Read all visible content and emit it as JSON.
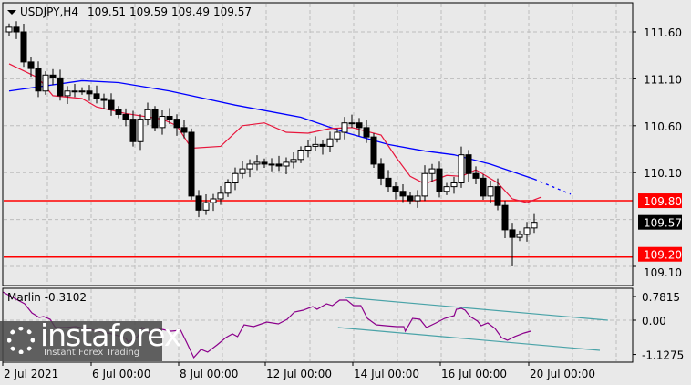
{
  "header": {
    "symbol": "USDJPY,H4",
    "open": "109.51",
    "high": "109.59",
    "low": "109.49",
    "close": "109.57"
  },
  "price_axis": {
    "ticks": [
      "111.60",
      "111.10",
      "110.60",
      "110.10",
      "109.10"
    ],
    "current": "109.57",
    "level_high": "109.80",
    "level_low": "109.20"
  },
  "indicator": {
    "name_value": "Marlin -0.3102",
    "ticks": [
      "0.7815",
      "0.00",
      "-1.1275"
    ]
  },
  "time_axis": {
    "labels": [
      "2 Jul 2021",
      "6 Jul 00:00",
      "8 Jul 00:00",
      "12 Jul 00:00",
      "14 Jul 00:00",
      "16 Jul 00:00",
      "20 Jul 00:00"
    ]
  },
  "watermark": {
    "brand": "instaforex",
    "tagline": "Instant Forex Trading"
  },
  "colors": {
    "background": "#e9e9e9",
    "level_lines": "#ff0000",
    "fast_ma": "#e8163c",
    "slow_ma": "#0000ff",
    "marlin": "#8b008b",
    "channel": "#4aa3a8",
    "current_price_bg": "#000000"
  },
  "chart_data": {
    "type": "candlestick",
    "symbol": "USDJPY",
    "timeframe": "H4",
    "ylim": [
      109.0,
      111.75
    ],
    "closes": [
      111.65,
      111.6,
      111.28,
      111.21,
      110.97,
      111.14,
      111.11,
      110.92,
      110.97,
      110.97,
      110.97,
      110.94,
      110.89,
      110.87,
      110.77,
      110.72,
      110.67,
      110.43,
      110.67,
      110.77,
      110.58,
      110.7,
      110.67,
      110.58,
      110.53,
      109.85,
      109.7,
      109.78,
      109.82,
      109.88,
      109.99,
      110.09,
      110.14,
      110.19,
      110.21,
      110.19,
      110.19,
      110.17,
      110.21,
      110.24,
      110.34,
      110.38,
      110.4,
      110.38,
      110.46,
      110.53,
      110.63,
      110.63,
      110.58,
      110.48,
      110.19,
      110.04,
      109.95,
      109.9,
      109.85,
      109.8,
      109.85,
      110.09,
      110.14,
      109.9,
      109.95,
      109.99,
      110.29,
      110.09,
      110.04,
      109.85,
      109.95,
      109.75,
      109.49,
      109.41,
      109.44,
      109.51,
      109.57
    ],
    "notable_low": {
      "index": 69,
      "price": 109.1
    },
    "horizontal_levels": [
      109.8,
      109.2
    ],
    "slow_ma": [
      [
        0,
        110.97
      ],
      [
        10,
        111.08
      ],
      [
        15,
        111.06
      ],
      [
        22,
        110.97
      ],
      [
        31,
        110.82
      ],
      [
        40,
        110.69
      ],
      [
        46,
        110.53
      ],
      [
        52,
        110.4
      ],
      [
        57,
        110.33
      ],
      [
        61,
        110.29
      ],
      [
        66,
        110.19
      ],
      [
        72,
        110.03
      ]
    ],
    "slow_ma_projection": [
      [
        72,
        110.03
      ],
      [
        77,
        109.87
      ]
    ],
    "fast_ma": [
      [
        0,
        111.26
      ],
      [
        4,
        111.11
      ],
      [
        6,
        110.92
      ],
      [
        10,
        110.89
      ],
      [
        12,
        110.8
      ],
      [
        16,
        110.73
      ],
      [
        21,
        110.67
      ],
      [
        23,
        110.6
      ],
      [
        25,
        110.36
      ],
      [
        29,
        110.38
      ],
      [
        32,
        110.6
      ],
      [
        35,
        110.63
      ],
      [
        38,
        110.53
      ],
      [
        41,
        110.52
      ],
      [
        44,
        110.57
      ],
      [
        47,
        110.58
      ],
      [
        49,
        110.54
      ],
      [
        51,
        110.5
      ],
      [
        53,
        110.27
      ],
      [
        55,
        110.06
      ],
      [
        57,
        109.98
      ],
      [
        60,
        110.07
      ],
      [
        62,
        110.06
      ],
      [
        64,
        110.13
      ],
      [
        67,
        109.99
      ],
      [
        69,
        109.82
      ],
      [
        71,
        109.78
      ],
      [
        73,
        109.84
      ]
    ],
    "marlin": {
      "ylim": [
        -1.2,
        0.95
      ],
      "points": [
        [
          0,
          0.93
        ],
        [
          3,
          0.54
        ],
        [
          4,
          0.24
        ],
        [
          5,
          0.09
        ],
        [
          5.6,
          0.12
        ],
        [
          6.5,
          0.03
        ],
        [
          7.2,
          -0.24
        ],
        [
          8.7,
          -0.24
        ],
        [
          10,
          -0.21
        ],
        [
          11.2,
          -0.27
        ],
        [
          12.5,
          -0.33
        ],
        [
          15,
          -0.45
        ],
        [
          16.9,
          -0.6
        ],
        [
          17.2,
          -0.72
        ],
        [
          18.5,
          -0.54
        ],
        [
          19.1,
          -0.24
        ],
        [
          20.2,
          -0.42
        ],
        [
          21.2,
          -0.27
        ],
        [
          23.1,
          -0.36
        ],
        [
          24.4,
          -0.33
        ],
        [
          25.2,
          -0.72
        ],
        [
          26.2,
          -1.23
        ],
        [
          27.2,
          -0.96
        ],
        [
          28.1,
          -1.05
        ],
        [
          29.4,
          -0.81
        ],
        [
          30.6,
          -0.57
        ],
        [
          31.5,
          -0.45
        ],
        [
          32.2,
          -0.54
        ],
        [
          33.1,
          -0.15
        ],
        [
          34.4,
          -0.21
        ],
        [
          36.2,
          -0.06
        ],
        [
          37.8,
          -0.12
        ],
        [
          39,
          0.03
        ],
        [
          40,
          0.27
        ],
        [
          41.2,
          0.33
        ],
        [
          42.5,
          0.45
        ],
        [
          43.1,
          0.36
        ],
        [
          44.4,
          0.54
        ],
        [
          45.2,
          0.48
        ],
        [
          46.2,
          0.66
        ],
        [
          47.2,
          0.66
        ],
        [
          48.1,
          0.48
        ],
        [
          49.1,
          0.48
        ],
        [
          50,
          0.06
        ],
        [
          51.2,
          -0.15
        ],
        [
          52.5,
          -0.18
        ],
        [
          54,
          -0.21
        ],
        [
          55,
          -0.21
        ],
        [
          55.2,
          -0.36
        ],
        [
          56.2,
          0.06
        ],
        [
          57.2,
          0.03
        ],
        [
          58.1,
          -0.24
        ],
        [
          59.4,
          -0.09
        ],
        [
          60.6,
          0.06
        ],
        [
          61.9,
          0.15
        ],
        [
          62.2,
          0.36
        ],
        [
          62.9,
          0.39
        ],
        [
          63.4,
          0.33
        ],
        [
          64.1,
          0.12
        ],
        [
          65.1,
          -0.03
        ],
        [
          65.6,
          -0.18
        ],
        [
          66.5,
          -0.09
        ],
        [
          67.5,
          -0.27
        ],
        [
          68.4,
          -0.57
        ],
        [
          69.2,
          -0.66
        ],
        [
          70.2,
          -0.54
        ],
        [
          71.5,
          -0.42
        ],
        [
          72.4,
          -0.36
        ]
      ],
      "channel_upper": [
        [
          46.1,
          0.75
        ],
        [
          82.1,
          0.0
        ]
      ],
      "channel_lower": [
        [
          45.1,
          -0.24
        ],
        [
          81,
          -0.99
        ]
      ]
    }
  }
}
